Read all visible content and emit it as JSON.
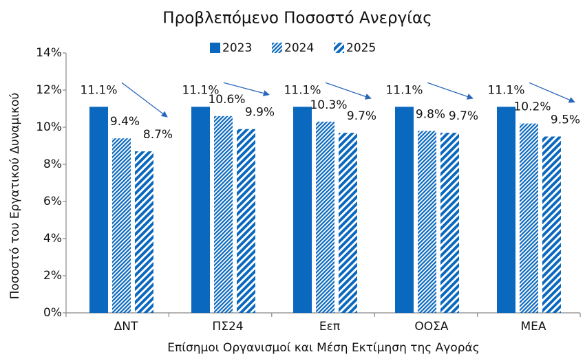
{
  "chart_data": {
    "type": "bar",
    "title": "Προβλεπόμενο Ποσοστό Ανεργίας",
    "x_label": "Επίσημοι Οργανισμοί και Μέση Εκτίμηση της Αγοράς",
    "y_label": "Ποσοστό του Εργατικού Δυναμικού",
    "categories": [
      "ΔΝΤ",
      "ΠΣ24",
      "Εεπ",
      "ΟΟΣΑ",
      "ΜΕΑ"
    ],
    "series": [
      {
        "name": "2023",
        "color": "#0a68be",
        "values": [
          11.1,
          11.1,
          11.1,
          11.1,
          11.1
        ],
        "value_labels": [
          "11.1%",
          "11.1%",
          "11.1%",
          "11.1%",
          "11.1%"
        ]
      },
      {
        "name": "2024",
        "color": "#0a68be",
        "values": [
          9.4,
          10.6,
          10.3,
          9.8,
          10.2
        ],
        "value_labels": [
          "9.4%",
          "10.6%",
          "10.3%",
          "9.8%",
          "10.2%"
        ]
      },
      {
        "name": "2025",
        "color": "#0a68be",
        "values": [
          8.7,
          9.9,
          9.7,
          9.7,
          9.5
        ],
        "value_labels": [
          "8.7%",
          "9.9%",
          "9.7%",
          "9.7%",
          "9.5%"
        ]
      }
    ],
    "ylim": [
      0,
      14
    ],
    "yticks": [
      {
        "value": 0,
        "label": "0%"
      },
      {
        "value": 2,
        "label": "2%"
      },
      {
        "value": 4,
        "label": "4%"
      },
      {
        "value": 6,
        "label": "6%"
      },
      {
        "value": 8,
        "label": "8%"
      },
      {
        "value": 10,
        "label": "10%"
      },
      {
        "value": 12,
        "label": "12%"
      },
      {
        "value": 14,
        "label": "14%"
      }
    ],
    "legend": "top",
    "grid": false
  }
}
